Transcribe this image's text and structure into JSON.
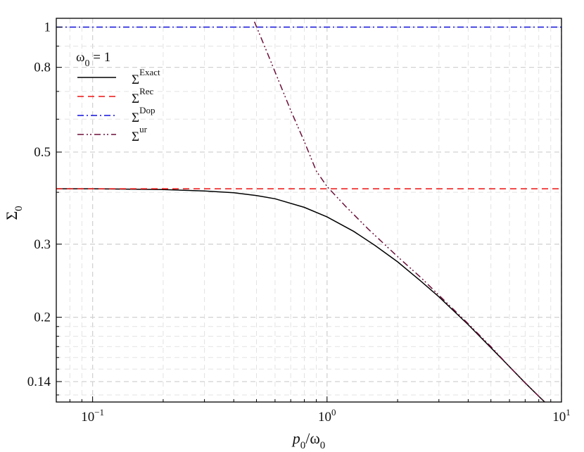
{
  "chart_data": {
    "type": "line",
    "xscale": "log",
    "yscale": "log",
    "xlim": [
      0.07,
      10
    ],
    "ylim": [
      0.125,
      1.05
    ],
    "grid": true,
    "legend_position": "top-left",
    "annotation": {
      "base": "ω",
      "sub": "0",
      "rest": " = 1"
    },
    "xlabel": {
      "num": "p",
      "num_sub": "0",
      "den": "ω",
      "den_sub": "0"
    },
    "ylabel": {
      "base": "Σ",
      "sub": "0"
    },
    "x_ticks": [
      {
        "value": 0.1,
        "base": "10",
        "exp": "−1"
      },
      {
        "value": 1,
        "base": "10",
        "exp": "0"
      },
      {
        "value": 10,
        "base": "10",
        "exp": "1"
      }
    ],
    "y_ticks": [
      {
        "value": 0.14,
        "label": "0.14"
      },
      {
        "value": 0.2,
        "label": "0.2"
      },
      {
        "value": 0.3,
        "label": "0.3"
      },
      {
        "value": 0.5,
        "label": "0.5"
      },
      {
        "value": 0.8,
        "label": "0.8"
      },
      {
        "value": 1,
        "label": "1"
      }
    ],
    "series": [
      {
        "base": "Σ",
        "sup": "Exact",
        "color": "#000000",
        "dash": "solid",
        "x": [
          0.07,
          0.1,
          0.15,
          0.2,
          0.3,
          0.4,
          0.5,
          0.6,
          0.8,
          1.0,
          1.3,
          1.6,
          2.0,
          2.5,
          3.0,
          4.0,
          5.0,
          6.0,
          7.0,
          8.0,
          9.0
        ],
        "y": [
          0.408,
          0.408,
          0.407,
          0.406,
          0.403,
          0.399,
          0.393,
          0.386,
          0.368,
          0.349,
          0.322,
          0.298,
          0.272,
          0.245,
          0.224,
          0.192,
          0.169,
          0.152,
          0.139,
          0.129,
          0.121
        ]
      },
      {
        "base": "Σ",
        "sup": "Rec",
        "color": "#ee1111",
        "dash": "dashed",
        "x": [
          0.07,
          10
        ],
        "y": [
          0.408,
          0.408
        ]
      },
      {
        "base": "Σ",
        "sup": "Dop",
        "color": "#1111dd",
        "dash": "dashdot",
        "x": [
          0.07,
          10
        ],
        "y": [
          1,
          1
        ]
      },
      {
        "base": "Σ",
        "sup": "ur",
        "color": "#6b0f38",
        "dash": "dashdotdot",
        "x": [
          0.49,
          0.55,
          0.6,
          0.7,
          0.8,
          0.9,
          1.0,
          1.2,
          1.5,
          2.0,
          2.5,
          3.0,
          4.0,
          5.0,
          6.0,
          7.0,
          8.0,
          9.0
        ],
        "y": [
          1.03,
          0.88,
          0.78,
          0.63,
          0.53,
          0.45,
          0.413,
          0.37,
          0.326,
          0.28,
          0.25,
          0.226,
          0.193,
          0.17,
          0.152,
          0.139,
          0.129,
          0.121
        ]
      }
    ]
  }
}
